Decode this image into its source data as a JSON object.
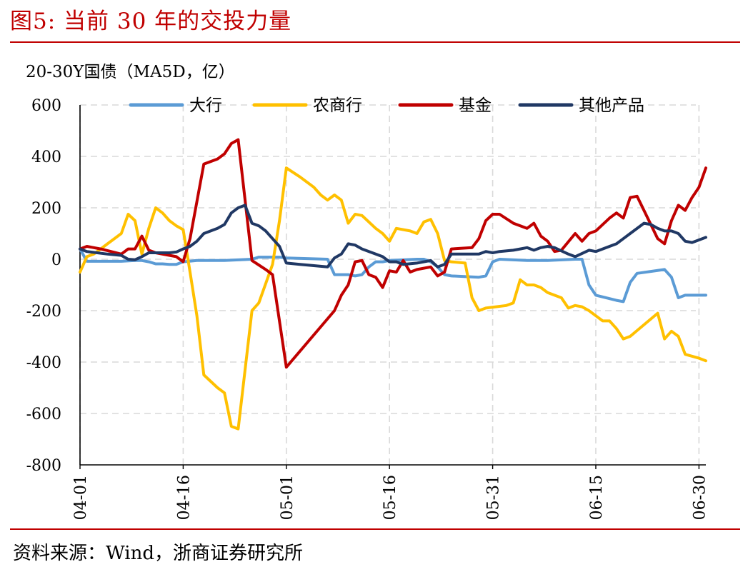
{
  "figure": {
    "title": "图5:   当前 30 年的交投力量",
    "source": "资料来源：Wind，浙商证券研究所"
  },
  "chart_data": {
    "type": "line",
    "title": "",
    "ylabel": "20-30Y国债（MA5D，亿）",
    "xlabel": "",
    "ylim": [
      -800,
      600
    ],
    "yticks": [
      600,
      400,
      200,
      0,
      -200,
      -400,
      -600,
      -800
    ],
    "xticks": [
      "04-01",
      "04-16",
      "05-01",
      "05-16",
      "05-31",
      "06-15",
      "06-30"
    ],
    "grid": true,
    "legend": "top",
    "series": [
      {
        "name": "大行",
        "color": "#5b9bd5",
        "points": [
          [
            "04-01",
            40
          ],
          [
            "04-02",
            -8
          ],
          [
            "04-05",
            -8
          ],
          [
            "04-07",
            -8
          ],
          [
            "04-09",
            -5
          ],
          [
            "04-10",
            -5
          ],
          [
            "04-11",
            -10
          ],
          [
            "04-12",
            -18
          ],
          [
            "04-13",
            -18
          ],
          [
            "04-14",
            -20
          ],
          [
            "04-15",
            -20
          ],
          [
            "04-16",
            -10
          ],
          [
            "04-18",
            -5
          ],
          [
            "04-22",
            -5
          ],
          [
            "04-26",
            0
          ],
          [
            "04-27",
            8
          ],
          [
            "04-30",
            8
          ],
          [
            "05-01",
            5
          ],
          [
            "05-07",
            0
          ],
          [
            "05-08",
            -60
          ],
          [
            "05-10",
            -60
          ],
          [
            "05-11",
            -65
          ],
          [
            "05-12",
            -60
          ],
          [
            "05-13",
            -30
          ],
          [
            "05-14",
            -10
          ],
          [
            "05-15",
            -10
          ],
          [
            "05-16",
            -5
          ],
          [
            "05-20",
            0
          ],
          [
            "05-21",
            0
          ],
          [
            "05-22",
            -10
          ],
          [
            "05-23",
            -30
          ],
          [
            "05-24",
            -60
          ],
          [
            "05-25",
            -65
          ],
          [
            "05-29",
            -70
          ],
          [
            "05-30",
            -65
          ],
          [
            "05-31",
            -10
          ],
          [
            "06-01",
            0
          ],
          [
            "06-05",
            -5
          ],
          [
            "06-07",
            -5
          ],
          [
            "06-08",
            -5
          ],
          [
            "06-12",
            0
          ],
          [
            "06-13",
            0
          ],
          [
            "06-14",
            -100
          ],
          [
            "06-15",
            -140
          ],
          [
            "06-18",
            -160
          ],
          [
            "06-19",
            -165
          ],
          [
            "06-20",
            -90
          ],
          [
            "06-21",
            -55
          ],
          [
            "06-25",
            -40
          ],
          [
            "06-26",
            -70
          ],
          [
            "06-27",
            -150
          ],
          [
            "06-28",
            -140
          ],
          [
            "06-30",
            -140
          ],
          [
            "07-01",
            -140
          ]
        ]
      },
      {
        "name": "农商行",
        "color": "#ffc000",
        "points": [
          [
            "04-01",
            -50
          ],
          [
            "04-02",
            10
          ],
          [
            "04-03",
            20
          ],
          [
            "04-04",
            40
          ],
          [
            "04-05",
            60
          ],
          [
            "04-07",
            100
          ],
          [
            "04-08",
            175
          ],
          [
            "04-09",
            150
          ],
          [
            "04-10",
            20
          ],
          [
            "04-11",
            120
          ],
          [
            "04-12",
            200
          ],
          [
            "04-13",
            180
          ],
          [
            "04-14",
            150
          ],
          [
            "04-15",
            130
          ],
          [
            "04-16",
            115
          ],
          [
            "04-17",
            -50
          ],
          [
            "04-18",
            -220
          ],
          [
            "04-19",
            -450
          ],
          [
            "04-21",
            -500
          ],
          [
            "04-22",
            -520
          ],
          [
            "04-23",
            -650
          ],
          [
            "04-24",
            -660
          ],
          [
            "04-26",
            -200
          ],
          [
            "04-27",
            -170
          ],
          [
            "04-29",
            -20
          ],
          [
            "04-30",
            150
          ],
          [
            "05-01",
            355
          ],
          [
            "05-03",
            320
          ],
          [
            "05-05",
            280
          ],
          [
            "05-06",
            250
          ],
          [
            "05-07",
            230
          ],
          [
            "05-08",
            250
          ],
          [
            "05-09",
            230
          ],
          [
            "05-10",
            140
          ],
          [
            "05-11",
            175
          ],
          [
            "05-12",
            170
          ],
          [
            "05-14",
            120
          ],
          [
            "05-15",
            100
          ],
          [
            "05-16",
            70
          ],
          [
            "05-17",
            120
          ],
          [
            "05-19",
            110
          ],
          [
            "05-20",
            100
          ],
          [
            "05-21",
            145
          ],
          [
            "05-22",
            155
          ],
          [
            "05-23",
            100
          ],
          [
            "05-24",
            -5
          ],
          [
            "05-25",
            -10
          ],
          [
            "05-27",
            -15
          ],
          [
            "05-28",
            -150
          ],
          [
            "05-29",
            -200
          ],
          [
            "05-30",
            -190
          ],
          [
            "06-02",
            -180
          ],
          [
            "06-03",
            -170
          ],
          [
            "06-04",
            -80
          ],
          [
            "06-05",
            -100
          ],
          [
            "06-06",
            -100
          ],
          [
            "06-07",
            -110
          ],
          [
            "06-08",
            -130
          ],
          [
            "06-10",
            -150
          ],
          [
            "06-11",
            -190
          ],
          [
            "06-12",
            -180
          ],
          [
            "06-13",
            -185
          ],
          [
            "06-14",
            -200
          ],
          [
            "06-15",
            -220
          ],
          [
            "06-16",
            -240
          ],
          [
            "06-17",
            -240
          ],
          [
            "06-18",
            -270
          ],
          [
            "06-19",
            -310
          ],
          [
            "06-20",
            -300
          ],
          [
            "06-24",
            -210
          ],
          [
            "06-25",
            -310
          ],
          [
            "06-26",
            -280
          ],
          [
            "06-27",
            -300
          ],
          [
            "06-28",
            -370
          ],
          [
            "06-30",
            -385
          ],
          [
            "07-01",
            -395
          ]
        ]
      },
      {
        "name": "基金",
        "color": "#c00000",
        "points": [
          [
            "04-01",
            40
          ],
          [
            "04-02",
            50
          ],
          [
            "04-04",
            40
          ],
          [
            "04-07",
            20
          ],
          [
            "04-08",
            40
          ],
          [
            "04-09",
            40
          ],
          [
            "04-10",
            90
          ],
          [
            "04-11",
            35
          ],
          [
            "04-12",
            25
          ],
          [
            "04-15",
            10
          ],
          [
            "04-16",
            -10
          ],
          [
            "04-17",
            80
          ],
          [
            "04-19",
            370
          ],
          [
            "04-21",
            390
          ],
          [
            "04-22",
            410
          ],
          [
            "04-23",
            450
          ],
          [
            "04-24",
            465
          ],
          [
            "04-26",
            -5
          ],
          [
            "04-28",
            -40
          ],
          [
            "04-29",
            -60
          ],
          [
            "05-01",
            -420
          ],
          [
            "05-08",
            -200
          ],
          [
            "05-09",
            -140
          ],
          [
            "05-10",
            -100
          ],
          [
            "05-11",
            -10
          ],
          [
            "05-12",
            -5
          ],
          [
            "05-13",
            -60
          ],
          [
            "05-14",
            -70
          ],
          [
            "05-15",
            -110
          ],
          [
            "05-16",
            -45
          ],
          [
            "05-17",
            -50
          ],
          [
            "05-18",
            -5
          ],
          [
            "05-19",
            -50
          ],
          [
            "05-20",
            -40
          ],
          [
            "05-22",
            -30
          ],
          [
            "05-23",
            -65
          ],
          [
            "05-24",
            -50
          ],
          [
            "05-25",
            40
          ],
          [
            "05-28",
            45
          ],
          [
            "05-29",
            80
          ],
          [
            "05-30",
            150
          ],
          [
            "05-31",
            175
          ],
          [
            "06-01",
            175
          ],
          [
            "06-03",
            140
          ],
          [
            "06-05",
            120
          ],
          [
            "06-06",
            140
          ],
          [
            "06-07",
            90
          ],
          [
            "06-08",
            70
          ],
          [
            "06-09",
            30
          ],
          [
            "06-10",
            35
          ],
          [
            "06-12",
            100
          ],
          [
            "06-13",
            70
          ],
          [
            "06-14",
            100
          ],
          [
            "06-15",
            110
          ],
          [
            "06-17",
            160
          ],
          [
            "06-18",
            180
          ],
          [
            "06-19",
            160
          ],
          [
            "06-20",
            240
          ],
          [
            "06-21",
            245
          ],
          [
            "06-22",
            190
          ],
          [
            "06-24",
            80
          ],
          [
            "06-25",
            60
          ],
          [
            "06-26",
            150
          ],
          [
            "06-27",
            210
          ],
          [
            "06-28",
            190
          ],
          [
            "06-29",
            240
          ],
          [
            "06-30",
            280
          ],
          [
            "07-01",
            355
          ]
        ]
      },
      {
        "name": "其他产品",
        "color": "#203864",
        "points": [
          [
            "04-01",
            40
          ],
          [
            "04-02",
            30
          ],
          [
            "04-05",
            20
          ],
          [
            "04-07",
            15
          ],
          [
            "04-08",
            0
          ],
          [
            "04-09",
            -2
          ],
          [
            "04-10",
            10
          ],
          [
            "04-11",
            25
          ],
          [
            "04-14",
            25
          ],
          [
            "04-15",
            28
          ],
          [
            "04-16",
            40
          ],
          [
            "04-17",
            50
          ],
          [
            "04-18",
            70
          ],
          [
            "04-19",
            100
          ],
          [
            "04-21",
            120
          ],
          [
            "04-22",
            135
          ],
          [
            "04-23",
            180
          ],
          [
            "04-24",
            200
          ],
          [
            "04-25",
            210
          ],
          [
            "04-26",
            140
          ],
          [
            "04-27",
            130
          ],
          [
            "04-28",
            110
          ],
          [
            "04-29",
            80
          ],
          [
            "04-30",
            50
          ],
          [
            "05-01",
            -15
          ],
          [
            "05-03",
            -20
          ],
          [
            "05-05",
            -25
          ],
          [
            "05-07",
            -30
          ],
          [
            "05-08",
            5
          ],
          [
            "05-09",
            20
          ],
          [
            "05-10",
            60
          ],
          [
            "05-11",
            55
          ],
          [
            "05-12",
            40
          ],
          [
            "05-14",
            20
          ],
          [
            "05-15",
            10
          ],
          [
            "05-16",
            -10
          ],
          [
            "05-17",
            -10
          ],
          [
            "05-18",
            -20
          ],
          [
            "05-20",
            -15
          ],
          [
            "05-22",
            -5
          ],
          [
            "05-23",
            -30
          ],
          [
            "05-24",
            -20
          ],
          [
            "05-25",
            20
          ],
          [
            "05-29",
            20
          ],
          [
            "05-30",
            30
          ],
          [
            "05-31",
            25
          ],
          [
            "06-01",
            30
          ],
          [
            "06-03",
            35
          ],
          [
            "06-04",
            40
          ],
          [
            "06-05",
            45
          ],
          [
            "06-06",
            35
          ],
          [
            "06-07",
            45
          ],
          [
            "06-08",
            50
          ],
          [
            "06-09",
            45
          ],
          [
            "06-11",
            20
          ],
          [
            "06-12",
            10
          ],
          [
            "06-14",
            35
          ],
          [
            "06-15",
            30
          ],
          [
            "06-17",
            50
          ],
          [
            "06-18",
            60
          ],
          [
            "06-19",
            80
          ],
          [
            "06-20",
            100
          ],
          [
            "06-22",
            140
          ],
          [
            "06-23",
            135
          ],
          [
            "06-24",
            120
          ],
          [
            "06-25",
            110
          ],
          [
            "06-26",
            110
          ],
          [
            "06-27",
            100
          ],
          [
            "06-28",
            70
          ],
          [
            "06-29",
            65
          ],
          [
            "06-30",
            75
          ],
          [
            "07-01",
            85
          ]
        ]
      }
    ]
  }
}
